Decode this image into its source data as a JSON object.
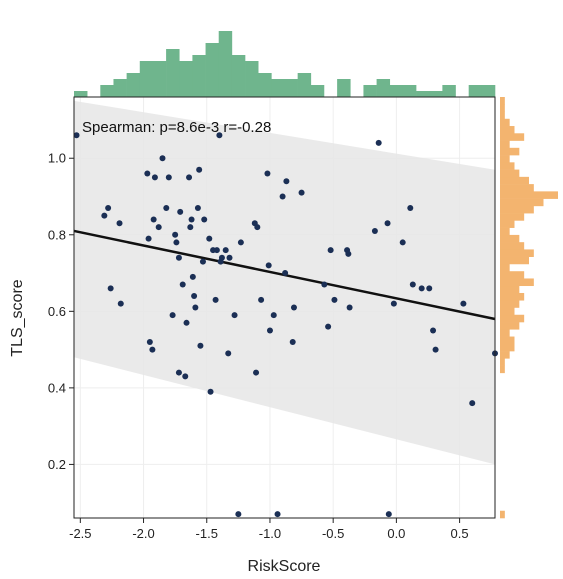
{
  "chart_data": {
    "type": "scatter",
    "annotation": "Spearman: p=8.6e-3 r=-0.28",
    "xlabel": "RiskScore",
    "ylabel": "TLS_score",
    "xlim": [
      -2.55,
      0.78
    ],
    "ylim": [
      0.06,
      1.16
    ],
    "x_ticks": [
      -2.5,
      -2.0,
      -1.5,
      -1.0,
      -0.5,
      0.0,
      0.5
    ],
    "x_tick_labels": [
      "-2.5",
      "-2.0",
      "-1.5",
      "-1.0",
      "-0.5",
      "0.0",
      "0.5"
    ],
    "y_ticks": [
      0.2,
      0.4,
      0.6,
      0.8,
      1.0
    ],
    "y_tick_labels": [
      "0.2",
      "0.4",
      "0.6",
      "0.8",
      "1.0"
    ],
    "grid": true,
    "regression_line": {
      "x": [
        -2.55,
        0.78
      ],
      "y": [
        0.81,
        0.58
      ]
    },
    "confidence_band": {
      "upper": {
        "x": [
          -2.55,
          0.78
        ],
        "y": [
          1.15,
          0.97
        ]
      },
      "lower": {
        "x": [
          -2.55,
          0.78
        ],
        "y": [
          0.48,
          0.2
        ]
      }
    },
    "colors": {
      "points": "#1b2f55",
      "regression": "#111111",
      "band": "#e6e6e6",
      "x_marginal": "#6fb58d",
      "y_marginal": "#f3b46f",
      "grid": "#eeeeee"
    },
    "points": [
      {
        "x": -2.53,
        "y": 1.06
      },
      {
        "x": -2.31,
        "y": 0.85
      },
      {
        "x": -2.28,
        "y": 0.87
      },
      {
        "x": -2.26,
        "y": 0.66
      },
      {
        "x": -2.19,
        "y": 0.83
      },
      {
        "x": -2.18,
        "y": 0.62
      },
      {
        "x": -1.97,
        "y": 0.96
      },
      {
        "x": -1.96,
        "y": 0.79
      },
      {
        "x": -1.95,
        "y": 0.52
      },
      {
        "x": -1.93,
        "y": 0.5
      },
      {
        "x": -1.92,
        "y": 0.84
      },
      {
        "x": -1.91,
        "y": 0.95
      },
      {
        "x": -1.88,
        "y": 0.82
      },
      {
        "x": -1.85,
        "y": 1.0
      },
      {
        "x": -1.82,
        "y": 0.87
      },
      {
        "x": -1.8,
        "y": 0.95
      },
      {
        "x": -1.77,
        "y": 0.59
      },
      {
        "x": -1.75,
        "y": 0.8
      },
      {
        "x": -1.74,
        "y": 0.78
      },
      {
        "x": -1.72,
        "y": 0.74
      },
      {
        "x": -1.72,
        "y": 0.44
      },
      {
        "x": -1.71,
        "y": 0.86
      },
      {
        "x": -1.69,
        "y": 0.67
      },
      {
        "x": -1.67,
        "y": 0.43
      },
      {
        "x": -1.66,
        "y": 0.57
      },
      {
        "x": -1.64,
        "y": 0.95
      },
      {
        "x": -1.63,
        "y": 0.82
      },
      {
        "x": -1.62,
        "y": 0.84
      },
      {
        "x": -1.61,
        "y": 0.69
      },
      {
        "x": -1.6,
        "y": 0.64
      },
      {
        "x": -1.59,
        "y": 0.61
      },
      {
        "x": -1.57,
        "y": 0.87
      },
      {
        "x": -1.56,
        "y": 0.97
      },
      {
        "x": -1.55,
        "y": 0.51
      },
      {
        "x": -1.53,
        "y": 0.73
      },
      {
        "x": -1.52,
        "y": 0.84
      },
      {
        "x": -1.48,
        "y": 0.79
      },
      {
        "x": -1.47,
        "y": 0.39
      },
      {
        "x": -1.45,
        "y": 0.76
      },
      {
        "x": -1.43,
        "y": 0.63
      },
      {
        "x": -1.42,
        "y": 0.76
      },
      {
        "x": -1.4,
        "y": 1.06
      },
      {
        "x": -1.39,
        "y": 0.73
      },
      {
        "x": -1.38,
        "y": 0.74
      },
      {
        "x": -1.35,
        "y": 0.76
      },
      {
        "x": -1.33,
        "y": 0.49
      },
      {
        "x": -1.32,
        "y": 0.74
      },
      {
        "x": -1.28,
        "y": 0.59
      },
      {
        "x": -1.25,
        "y": 0.07
      },
      {
        "x": -1.23,
        "y": 0.78
      },
      {
        "x": -1.12,
        "y": 0.83
      },
      {
        "x": -1.11,
        "y": 0.44
      },
      {
        "x": -1.1,
        "y": 0.82
      },
      {
        "x": -1.07,
        "y": 0.63
      },
      {
        "x": -1.02,
        "y": 0.96
      },
      {
        "x": -1.01,
        "y": 0.72
      },
      {
        "x": -1.0,
        "y": 0.55
      },
      {
        "x": -0.97,
        "y": 0.59
      },
      {
        "x": -0.94,
        "y": 0.07
      },
      {
        "x": -0.9,
        "y": 0.9
      },
      {
        "x": -0.88,
        "y": 0.7
      },
      {
        "x": -0.87,
        "y": 0.94
      },
      {
        "x": -0.82,
        "y": 0.52
      },
      {
        "x": -0.81,
        "y": 0.61
      },
      {
        "x": -0.75,
        "y": 0.91
      },
      {
        "x": -0.57,
        "y": 0.67
      },
      {
        "x": -0.54,
        "y": 0.56
      },
      {
        "x": -0.52,
        "y": 0.76
      },
      {
        "x": -0.49,
        "y": 0.63
      },
      {
        "x": -0.39,
        "y": 0.76
      },
      {
        "x": -0.38,
        "y": 0.75
      },
      {
        "x": -0.37,
        "y": 0.61
      },
      {
        "x": -0.17,
        "y": 0.81
      },
      {
        "x": -0.14,
        "y": 1.04
      },
      {
        "x": -0.07,
        "y": 0.83
      },
      {
        "x": -0.06,
        "y": 0.07
      },
      {
        "x": -0.02,
        "y": 0.62
      },
      {
        "x": 0.05,
        "y": 0.78
      },
      {
        "x": 0.11,
        "y": 0.87
      },
      {
        "x": 0.13,
        "y": 0.67
      },
      {
        "x": 0.2,
        "y": 0.66
      },
      {
        "x": 0.26,
        "y": 0.66
      },
      {
        "x": 0.29,
        "y": 0.55
      },
      {
        "x": 0.31,
        "y": 0.5
      },
      {
        "x": 0.53,
        "y": 0.62
      },
      {
        "x": 0.6,
        "y": 0.36
      },
      {
        "x": 0.78,
        "y": 0.49
      }
    ],
    "x_marginal_counts": [
      1,
      0,
      2,
      3,
      4,
      6,
      6,
      8,
      6,
      7,
      9,
      11,
      7,
      6,
      4,
      3,
      3,
      4,
      2,
      0,
      3,
      0,
      2,
      3,
      2,
      2,
      1,
      1,
      2,
      0,
      2,
      2
    ],
    "y_marginal_counts": [
      1,
      0,
      0,
      0,
      0,
      0,
      0,
      0,
      0,
      0,
      0,
      0,
      0,
      0,
      0,
      0,
      0,
      0,
      0,
      0,
      1,
      1,
      2,
      3,
      3,
      2,
      4,
      5,
      3,
      4,
      5,
      4,
      7,
      5,
      2,
      6,
      7,
      5,
      4,
      2,
      3,
      5,
      7,
      9,
      12,
      7,
      6,
      4,
      3,
      2,
      4,
      2,
      5,
      3,
      2,
      1,
      1,
      1
    ]
  }
}
